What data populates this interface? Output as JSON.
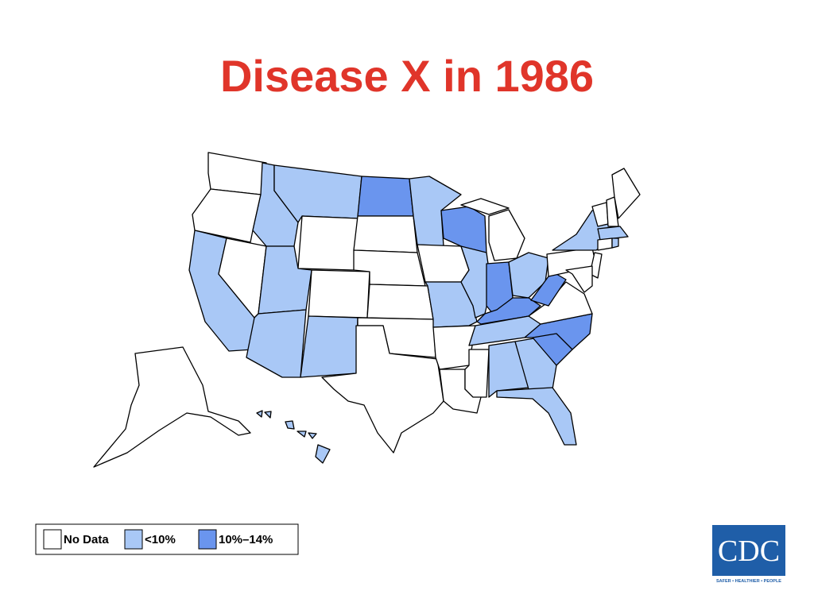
{
  "title": "Disease X in 1986",
  "legend": {
    "items": [
      {
        "label": "No Data",
        "color": "#ffffff"
      },
      {
        "label": "<10%",
        "color": "#a9c8f6"
      },
      {
        "label": "10%–14%",
        "color": "#6a95ee"
      }
    ]
  },
  "map": {
    "regions": [
      0,
      0,
      1,
      0,
      1,
      1,
      0,
      1,
      1,
      0,
      1,
      2,
      0,
      0,
      0,
      0,
      0,
      1,
      0,
      1,
      0,
      0,
      2,
      1,
      0,
      0,
      2,
      1,
      2,
      1,
      1,
      1,
      1,
      2,
      2,
      0,
      2,
      0,
      1,
      0,
      0,
      0,
      1,
      0,
      1,
      0,
      0,
      0,
      1
    ]
  },
  "logo": {
    "text": "CDC",
    "tagline": "SAFER • HEALTHIER • PEOPLE"
  }
}
